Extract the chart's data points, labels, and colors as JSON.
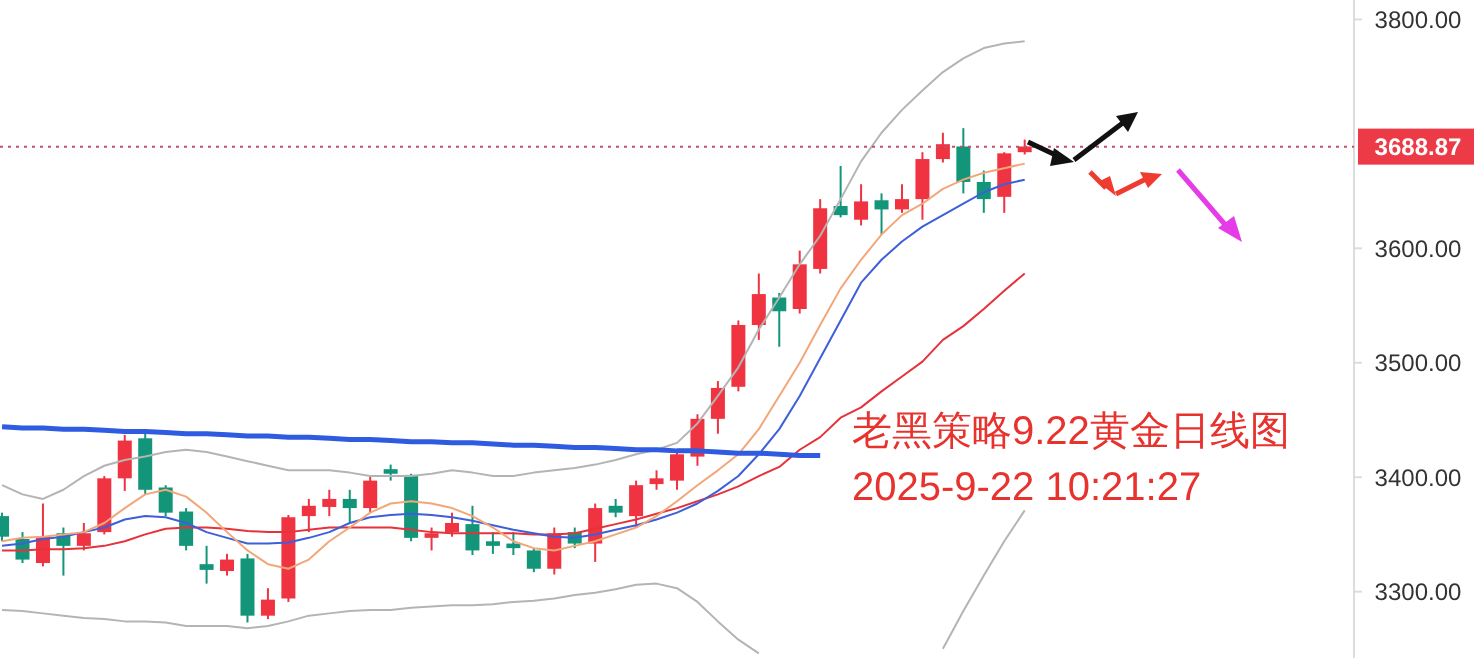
{
  "chart_data": {
    "type": "candlestick",
    "categories": [
      null,
      null,
      null,
      null,
      null,
      null,
      null,
      null,
      null,
      null,
      null,
      null,
      null,
      null,
      null,
      null,
      null,
      null,
      null,
      null,
      null,
      null,
      null,
      null,
      null,
      null,
      null,
      null,
      null,
      null,
      null,
      null,
      null,
      null,
      null,
      null,
      null,
      null,
      null,
      null,
      null,
      null,
      null,
      null,
      null,
      null,
      null,
      null,
      null,
      null,
      null
    ],
    "ohlc": [
      [
        3366,
        3369,
        3344,
        3348
      ],
      [
        3346,
        3352,
        3325,
        3328
      ],
      [
        3325,
        3377,
        3322,
        3348
      ],
      [
        3351,
        3356,
        3314,
        3340
      ],
      [
        3340,
        3360,
        3336,
        3351
      ],
      [
        3352,
        3401,
        3350,
        3399
      ],
      [
        3399,
        3437,
        3388,
        3432
      ],
      [
        3434,
        3438,
        3385,
        3389
      ],
      [
        3391,
        3393,
        3366,
        3369
      ],
      [
        3370,
        3373,
        3336,
        3340
      ],
      [
        3324,
        3340,
        3307,
        3319
      ],
      [
        3318,
        3333,
        3314,
        3328
      ],
      [
        3329,
        3333,
        3273,
        3279
      ],
      [
        3279,
        3303,
        3276,
        3293
      ],
      [
        3294,
        3367,
        3291,
        3365
      ],
      [
        3366,
        3381,
        3352,
        3375
      ],
      [
        3374,
        3389,
        3366,
        3381
      ],
      [
        3381,
        3389,
        3360,
        3373
      ],
      [
        3373,
        3401,
        3369,
        3397
      ],
      [
        3407,
        3411,
        3397,
        3403
      ],
      [
        3402,
        3403,
        3344,
        3347
      ],
      [
        3347,
        3356,
        3336,
        3351
      ],
      [
        3352,
        3369,
        3348,
        3360
      ],
      [
        3359,
        3375,
        3332,
        3336
      ],
      [
        3344,
        3352,
        3333,
        3340
      ],
      [
        3342,
        3352,
        3332,
        3338
      ],
      [
        3336,
        3338,
        3317,
        3320
      ],
      [
        3320,
        3356,
        3315,
        3351
      ],
      [
        3352,
        3356,
        3338,
        3342
      ],
      [
        3342,
        3377,
        3326,
        3373
      ],
      [
        3375,
        3381,
        3365,
        3369
      ],
      [
        3366,
        3397,
        3356,
        3393
      ],
      [
        3394,
        3406,
        3389,
        3399
      ],
      [
        3397,
        3422,
        3389,
        3420
      ],
      [
        3418,
        3455,
        3410,
        3451
      ],
      [
        3451,
        3484,
        3438,
        3478
      ],
      [
        3479,
        3537,
        3475,
        3533
      ],
      [
        3533,
        3578,
        3520,
        3560
      ],
      [
        3557,
        3561,
        3514,
        3545
      ],
      [
        3547,
        3598,
        3543,
        3586
      ],
      [
        3582,
        3643,
        3578,
        3635
      ],
      [
        3637,
        3672,
        3627,
        3629
      ],
      [
        3625,
        3656,
        3620,
        3641
      ],
      [
        3642,
        3648,
        3612,
        3634
      ],
      [
        3634,
        3656,
        3631,
        3643
      ],
      [
        3643,
        3684,
        3625,
        3678
      ],
      [
        3678,
        3701,
        3675,
        3691
      ],
      [
        3689,
        3705,
        3648,
        3658
      ],
      [
        3658,
        3668,
        3631,
        3643
      ],
      [
        3645,
        3684,
        3631,
        3683
      ],
      [
        3684,
        3695,
        3682,
        3689
      ]
    ],
    "colors": [
      "#13957a",
      "#13957a",
      "#ef3340",
      "#13957a",
      "#ef3340",
      "#ef3340",
      "#ef3340",
      "#13957a",
      "#13957a",
      "#13957a",
      "#13957a",
      "#ef3340",
      "#13957a",
      "#ef3340",
      "#ef3340",
      "#ef3340",
      "#ef3340",
      "#13957a",
      "#ef3340",
      "#13957a",
      "#13957a",
      "#ef3340",
      "#ef3340",
      "#13957a",
      "#13957a",
      "#13957a",
      "#13957a",
      "#ef3340",
      "#13957a",
      "#ef3340",
      "#13957a",
      "#ef3340",
      "#ef3340",
      "#ef3340",
      "#ef3340",
      "#ef3340",
      "#ef3340",
      "#ef3340",
      "#13957a",
      "#ef3340",
      "#ef3340",
      "#13957a",
      "#ef3340",
      "#13957a",
      "#ef3340",
      "#ef3340",
      "#ef3340",
      "#13957a",
      "#13957a",
      "#ef3340",
      "#ef3340"
    ],
    "series": [
      {
        "type": "line",
        "color": "#b4b4b4",
        "values": [
          3393,
          3385,
          3381,
          3389,
          3401,
          3410,
          3415,
          3418,
          3422,
          3424,
          3422,
          3418,
          3414,
          3410,
          3406,
          3406,
          3406,
          3404,
          3401,
          3401,
          3401,
          3403,
          3406,
          3404,
          3401,
          3401,
          3404,
          3406,
          3408,
          3411,
          3415,
          3420,
          3424,
          3430,
          3447,
          3471,
          3496,
          3529,
          3557,
          3586,
          3611,
          3643,
          3676,
          3701,
          3721,
          3738,
          3754,
          3766,
          3775,
          3779,
          3781
        ]
      },
      {
        "type": "line",
        "color": "#b4b4b4",
        "values": [
          3284,
          3283,
          3281,
          3279,
          3277,
          3276,
          3274,
          3274,
          3273,
          3270,
          3270,
          3270,
          3268,
          3270,
          3274,
          3279,
          3281,
          3283,
          3284,
          3284,
          3286,
          3287,
          3288,
          3288,
          3289,
          3291,
          3292,
          3294,
          3297,
          3299,
          3302,
          3306,
          3307,
          3303,
          3291,
          3274,
          3258,
          3246,
          null,
          null,
          null,
          null,
          null,
          null,
          null,
          null,
          3250,
          3283,
          3314,
          3344,
          3371
        ]
      },
      {
        "type": "line",
        "color": "#e5323b",
        "values": [
          3336,
          3336,
          3337,
          3337,
          3338,
          3340,
          3344,
          3350,
          3355,
          3356,
          3356,
          3355,
          3353,
          3352,
          3352,
          3354,
          3356,
          3356,
          3356,
          3356,
          3354,
          3352,
          3351,
          3351,
          3351,
          3351,
          3350,
          3350,
          3351,
          3355,
          3359,
          3363,
          3368,
          3373,
          3379,
          3385,
          3392,
          3401,
          3409,
          3424,
          3435,
          3452,
          3461,
          3475,
          3488,
          3501,
          3520,
          3532,
          3547,
          3563,
          3578
        ]
      },
      {
        "type": "line",
        "color": "#3d5fd9",
        "values": [
          3340,
          3342,
          3346,
          3348,
          3352,
          3356,
          3363,
          3366,
          3365,
          3360,
          3352,
          3347,
          3342,
          3342,
          3343,
          3347,
          3352,
          3360,
          3365,
          3367,
          3368,
          3367,
          3365,
          3362,
          3358,
          3354,
          3351,
          3348,
          3347,
          3350,
          3354,
          3358,
          3363,
          3369,
          3377,
          3388,
          3401,
          3420,
          3442,
          3471,
          3504,
          3537,
          3570,
          3590,
          3606,
          3619,
          3629,
          3639,
          3649,
          3656,
          3660
        ]
      },
      {
        "type": "line",
        "color": "#f2a779",
        "values": [
          3344,
          3347,
          3348,
          3350,
          3352,
          3360,
          3373,
          3385,
          3389,
          3383,
          3369,
          3352,
          3336,
          3324,
          3320,
          3328,
          3344,
          3356,
          3369,
          3377,
          3379,
          3377,
          3373,
          3366,
          3356,
          3344,
          3338,
          3336,
          3340,
          3344,
          3350,
          3356,
          3366,
          3379,
          3393,
          3406,
          3420,
          3442,
          3471,
          3500,
          3533,
          3565,
          3590,
          3612,
          3629,
          3639,
          3652,
          3660,
          3666,
          3670,
          3674
        ]
      },
      {
        "type": "line",
        "color": "#2e5be0",
        "values": [
          3444,
          3443,
          3443,
          3442,
          3442,
          3441,
          3440,
          3440,
          3439,
          3438,
          3438,
          3437,
          3436,
          3436,
          3435,
          3435,
          3434,
          3433,
          3433,
          3432,
          3431,
          3431,
          3430,
          3430,
          3429,
          3428,
          3428,
          3427,
          3426,
          3426,
          3425,
          3424,
          3424,
          3423,
          3423,
          3422,
          3421,
          3421,
          3420,
          3419,
          3419,
          null,
          null,
          null,
          null,
          null,
          null,
          null,
          null,
          null,
          null
        ]
      }
    ],
    "ylim": [
      3242,
      3817
    ],
    "yticks": [
      {
        "value": 3300,
        "label": "3300.00"
      },
      {
        "value": 3400,
        "label": "3400.00"
      },
      {
        "value": 3500,
        "label": "3500.00"
      },
      {
        "value": 3600,
        "label": "3600.00"
      },
      {
        "value": 3800,
        "label": "3800.00"
      }
    ],
    "ref_lines": [
      {
        "axis": "y",
        "value": 3688.87,
        "label": "3688.87",
        "color": "#c0506a",
        "line_style": "dotted"
      }
    ],
    "annotations": [
      "老黑策略9.22黄金日线图",
      "2025-9-22 10:21:27"
    ]
  }
}
